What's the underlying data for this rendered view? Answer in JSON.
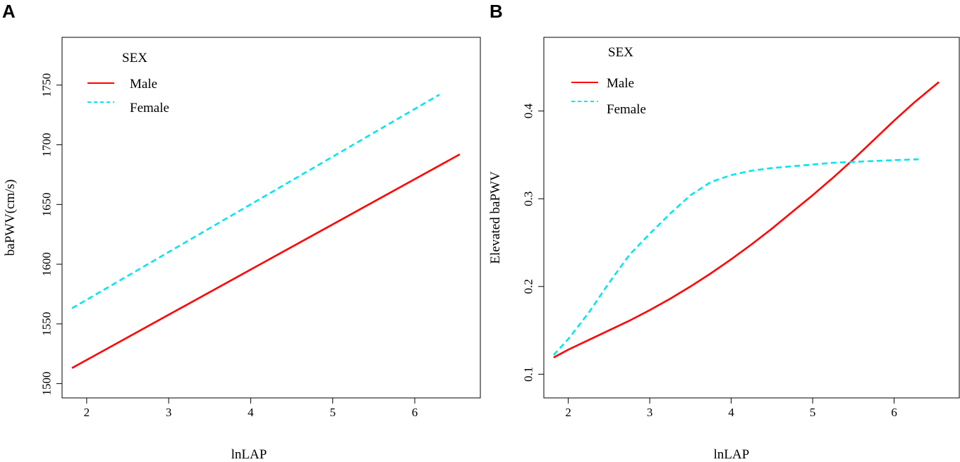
{
  "chart_data": [
    {
      "panel": "A",
      "type": "line",
      "title": "",
      "xlabel": "lnLAP",
      "ylabel": "baPWV(cm/s)",
      "xlim": [
        1.7,
        6.8
      ],
      "ylim": [
        1488,
        1790
      ],
      "xticks": [
        2,
        3,
        4,
        5,
        6
      ],
      "yticks": [
        1500,
        1550,
        1600,
        1650,
        1700,
        1750
      ],
      "legend": {
        "title": "SEX",
        "position": "top-left"
      },
      "series": [
        {
          "name": "Male",
          "color": "#ff0000",
          "dash": "solid",
          "x": [
            1.82,
            6.55
          ],
          "y": [
            1513,
            1692
          ]
        },
        {
          "name": "Female",
          "color": "#00e5ee",
          "dash": "dashed",
          "x": [
            1.82,
            6.3
          ],
          "y": [
            1563,
            1742
          ]
        }
      ]
    },
    {
      "panel": "B",
      "type": "line",
      "title": "",
      "xlabel": "lnLAP",
      "ylabel": "Elevated baPWV",
      "xlim": [
        1.7,
        6.8
      ],
      "ylim": [
        0.073,
        0.484
      ],
      "xticks": [
        2,
        3,
        4,
        5,
        6
      ],
      "yticks": [
        0.1,
        0.2,
        0.3,
        0.4
      ],
      "legend": {
        "title": "SEX",
        "position": "top-left"
      },
      "series": [
        {
          "name": "Male",
          "color": "#ff0000",
          "dash": "solid",
          "x": [
            1.82,
            2.0,
            2.25,
            2.5,
            2.75,
            3.0,
            3.25,
            3.5,
            3.75,
            4.0,
            4.25,
            4.5,
            4.75,
            5.0,
            5.25,
            5.5,
            5.75,
            6.0,
            6.25,
            6.55
          ],
          "y": [
            0.119,
            0.128,
            0.139,
            0.15,
            0.161,
            0.173,
            0.186,
            0.2,
            0.215,
            0.231,
            0.248,
            0.266,
            0.285,
            0.304,
            0.324,
            0.345,
            0.367,
            0.389,
            0.41,
            0.433
          ]
        },
        {
          "name": "Female",
          "color": "#00e5ee",
          "dash": "dashed",
          "x": [
            1.82,
            2.0,
            2.25,
            2.5,
            2.75,
            3.0,
            3.25,
            3.5,
            3.75,
            4.0,
            4.25,
            4.5,
            4.75,
            5.0,
            5.25,
            5.5,
            5.75,
            6.0,
            6.3
          ],
          "y": [
            0.122,
            0.14,
            0.17,
            0.204,
            0.236,
            0.26,
            0.283,
            0.304,
            0.319,
            0.327,
            0.332,
            0.335,
            0.337,
            0.339,
            0.341,
            0.342,
            0.343,
            0.344,
            0.345
          ]
        }
      ]
    }
  ],
  "panels": {
    "a": {
      "letter": "A"
    },
    "b": {
      "letter": "B"
    }
  }
}
